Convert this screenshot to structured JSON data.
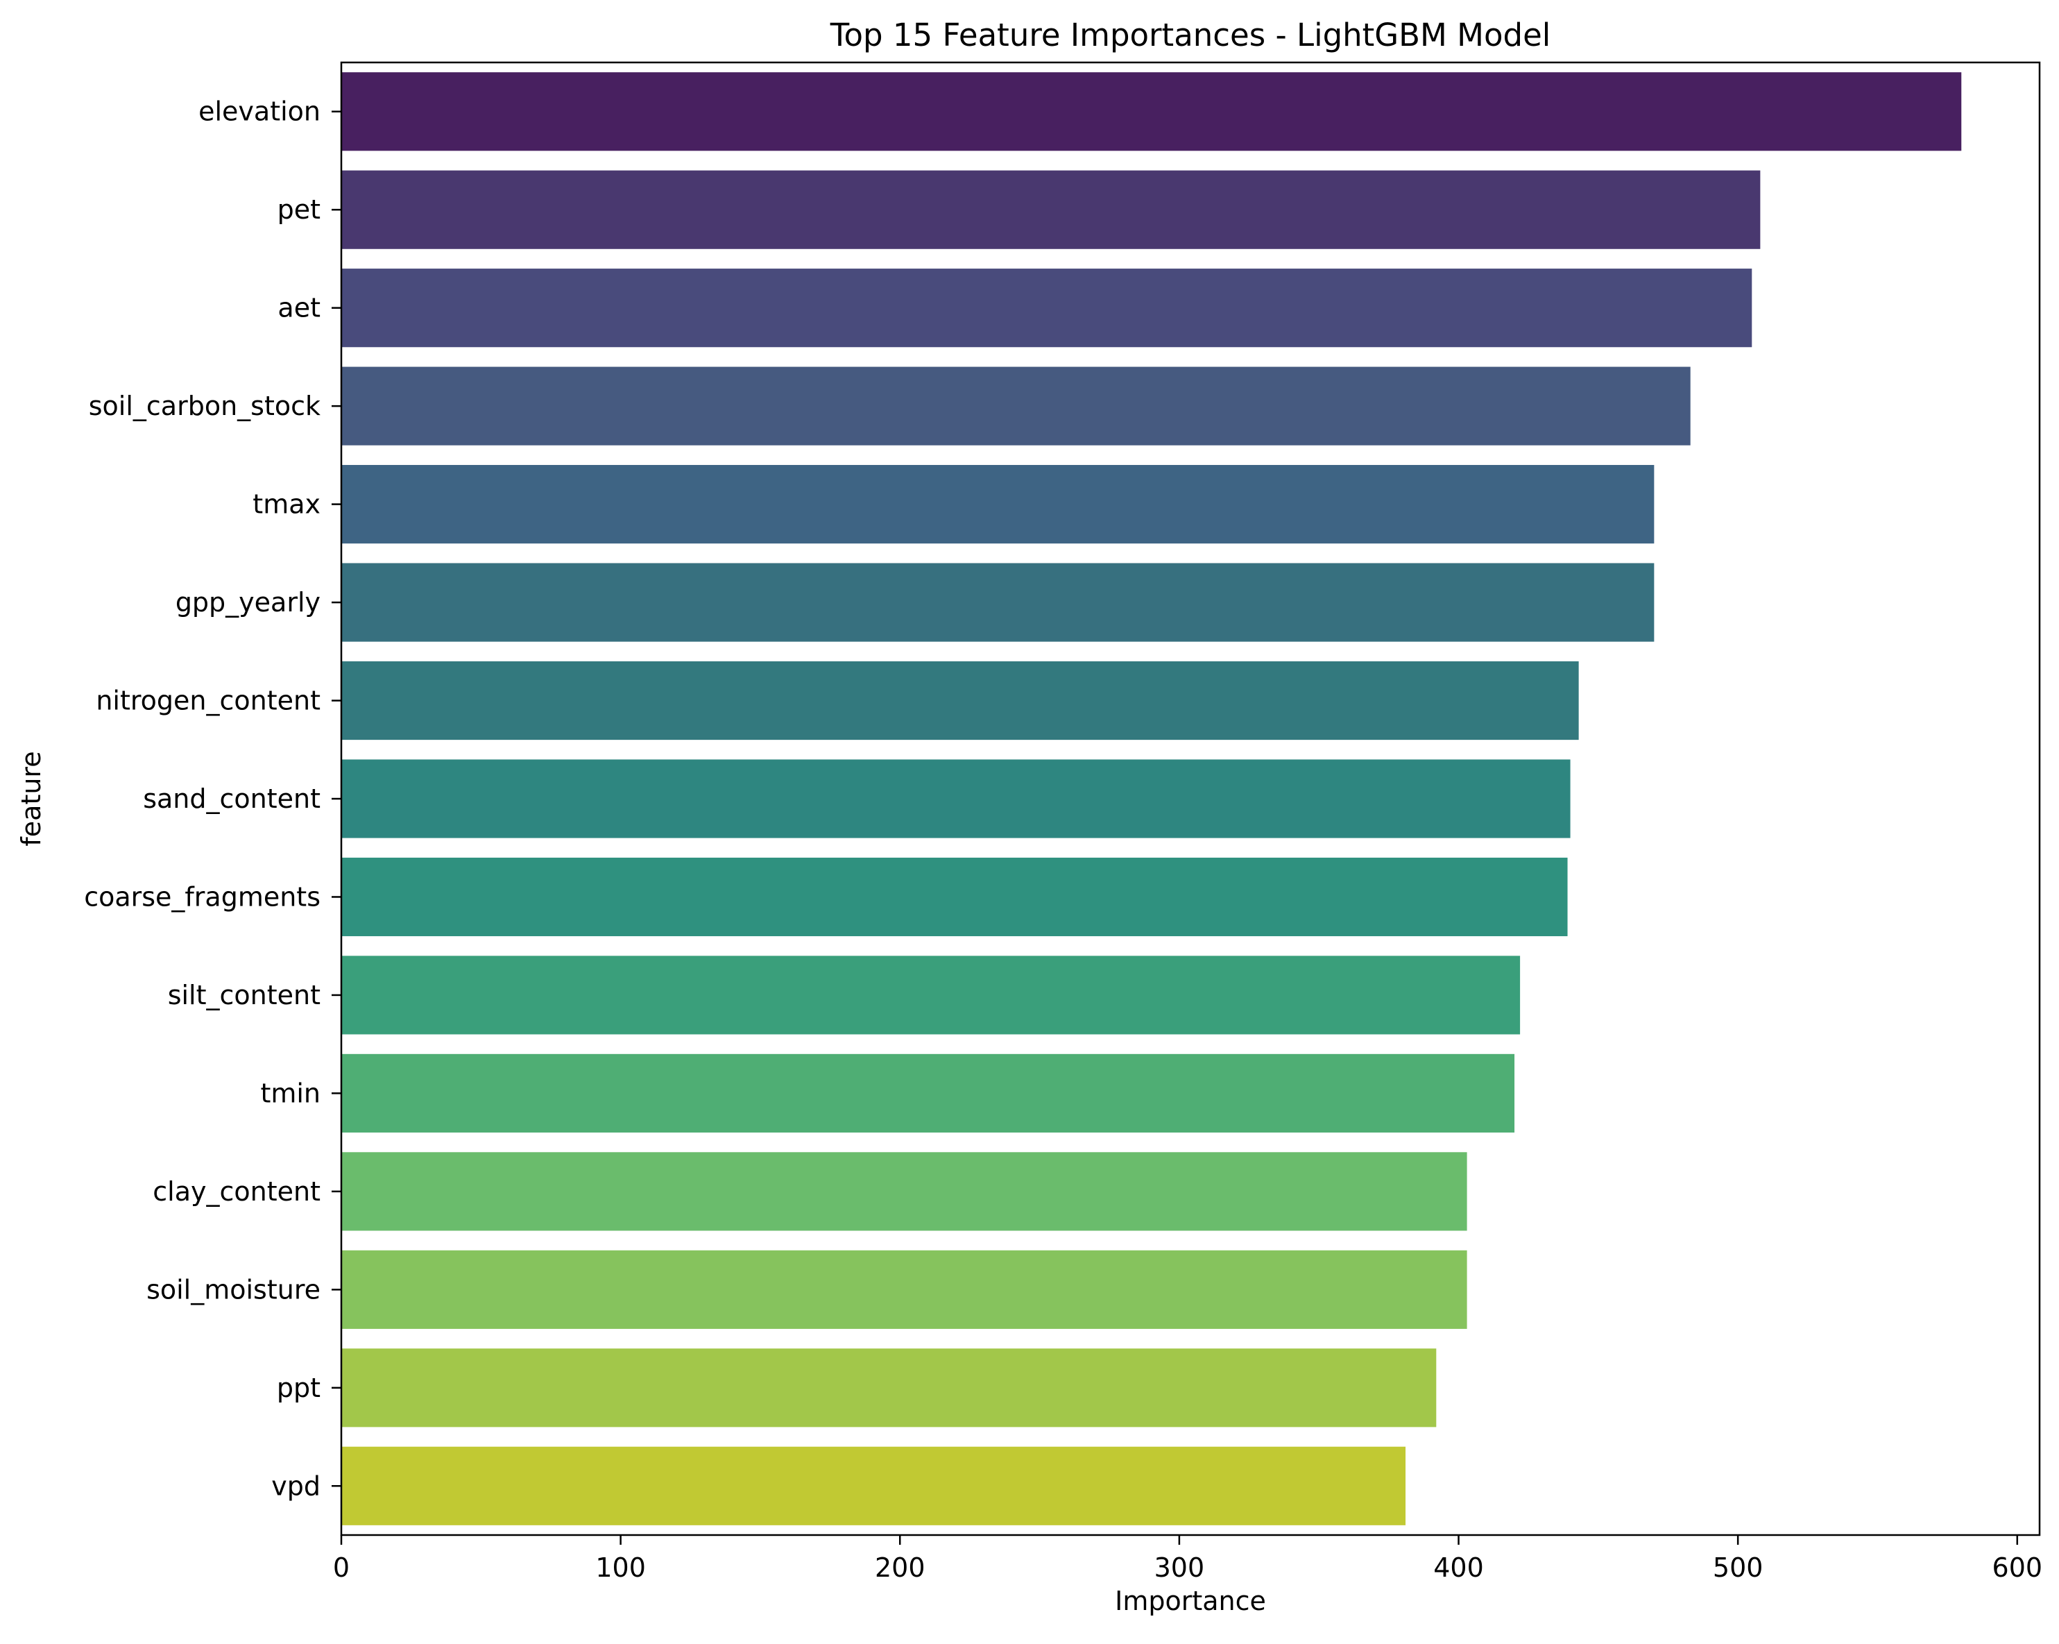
{
  "chart_data": {
    "type": "bar",
    "orientation": "horizontal",
    "title": "Top 15 Feature Importances - LightGBM Model",
    "xlabel": "Importance",
    "ylabel": "feature",
    "xlim": [
      0,
      608
    ],
    "xticks": [
      0,
      100,
      200,
      300,
      400,
      500,
      600
    ],
    "grid": false,
    "categories": [
      "elevation",
      "pet",
      "aet",
      "soil_carbon_stock",
      "tmax",
      "gpp_yearly",
      "nitrogen_content",
      "sand_content",
      "coarse_fragments",
      "silt_content",
      "tmin",
      "clay_content",
      "soil_moisture",
      "ppt",
      "vpd"
    ],
    "values": [
      580,
      508,
      505,
      483,
      470,
      470,
      443,
      440,
      439,
      422,
      420,
      403,
      403,
      392,
      381
    ],
    "colors": [
      "#482060",
      "#49386f",
      "#494b7c",
      "#465a80",
      "#3e6484",
      "#37707f",
      "#33797e",
      "#2e8680",
      "#2f917f",
      "#3a9f7b",
      "#4fae74",
      "#6abc6c",
      "#86c35d",
      "#a2c74a",
      "#c1c933"
    ]
  }
}
